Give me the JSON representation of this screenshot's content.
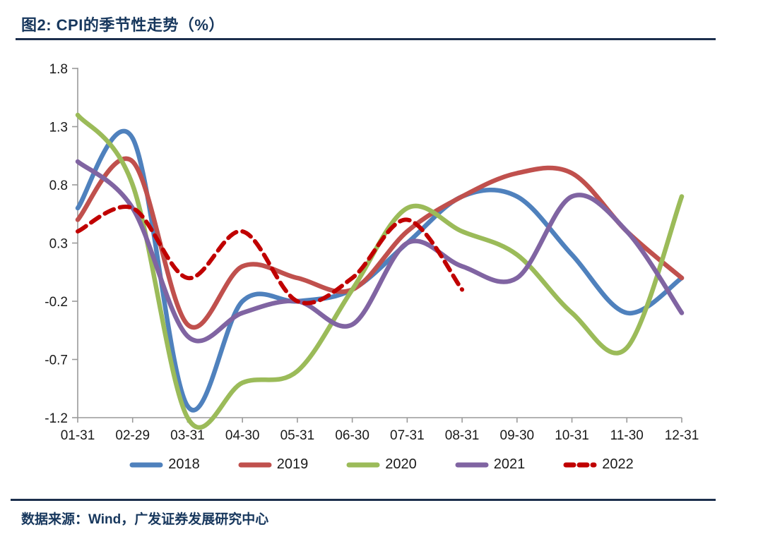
{
  "figure": {
    "title": "图2:  CPI的季节性走势（%）",
    "source": "数据来源：Wind，广发证券发展研究中心"
  },
  "chart_data": {
    "type": "line",
    "title": "CPI的季节性走势（%）",
    "categories": [
      "01-31",
      "02-29",
      "03-31",
      "04-30",
      "05-31",
      "06-30",
      "07-31",
      "08-31",
      "09-30",
      "10-31",
      "11-30",
      "12-31"
    ],
    "series": [
      {
        "name": "2018",
        "color": "#4f81bd",
        "style": "solid",
        "values": [
          0.6,
          1.2,
          -1.1,
          -0.2,
          -0.2,
          -0.1,
          0.3,
          0.7,
          0.7,
          0.2,
          -0.3,
          0.0
        ]
      },
      {
        "name": "2019",
        "color": "#c0504d",
        "style": "solid",
        "values": [
          0.5,
          1.0,
          -0.4,
          0.1,
          0.0,
          -0.1,
          0.4,
          0.7,
          0.9,
          0.9,
          0.4,
          0.0
        ]
      },
      {
        "name": "2020",
        "color": "#9bbb59",
        "style": "solid",
        "values": [
          1.4,
          0.8,
          -1.2,
          -0.9,
          -0.8,
          -0.1,
          0.6,
          0.4,
          0.2,
          -0.3,
          -0.6,
          0.7
        ]
      },
      {
        "name": "2021",
        "color": "#8064a2",
        "style": "solid",
        "values": [
          1.0,
          0.6,
          -0.5,
          -0.3,
          -0.2,
          -0.4,
          0.3,
          0.1,
          0.0,
          0.7,
          0.4,
          -0.3
        ]
      },
      {
        "name": "2022",
        "color": "#c00000",
        "style": "dashed",
        "values": [
          0.4,
          0.6,
          0.0,
          0.4,
          -0.2,
          0.0,
          0.5,
          -0.1
        ]
      }
    ],
    "ylim": [
      -1.2,
      1.8
    ],
    "yticks": [
      "1.8",
      "1.3",
      "0.8",
      "0.3",
      "-0.2",
      "-0.7",
      "-1.2"
    ],
    "xlabel": "",
    "ylabel": "",
    "grid": false,
    "legend_position": "bottom",
    "axis_color": "#9a9a9a",
    "tick_label_color": "#1a1a1a"
  }
}
